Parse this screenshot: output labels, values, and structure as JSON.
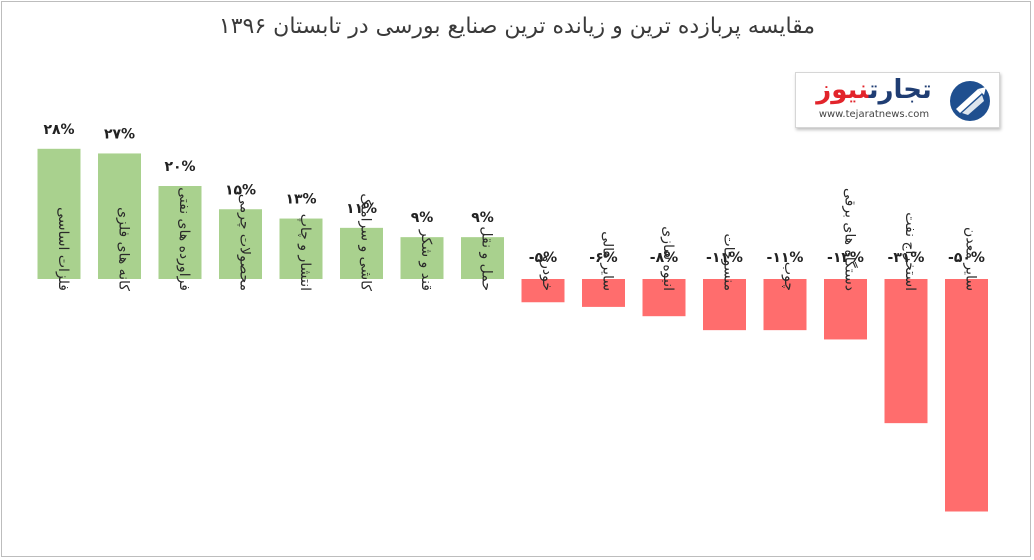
{
  "chart_data": {
    "type": "bar",
    "title": "مقایسه پربازده ترین و زیانده ترین صنایع بورسی در  تابستان ۱۳۹۶",
    "categories": [
      "فلزات اساسی",
      "کانه های فلزی",
      "فراورده های نفتی",
      "محصولات چرمی",
      "انتشار و چاپ",
      "کاشی و سرامیک",
      "قند و شکر",
      "حمل و نقل",
      "خودرو",
      "سایر مالی",
      "انبوه سازی",
      "منسوجات",
      "چوب",
      "دستگاه های برقی",
      "استخراج نفت",
      "سایر معدن"
    ],
    "values": [
      28,
      27,
      20,
      15,
      13,
      11,
      9,
      9,
      -5,
      -6,
      -8,
      -11,
      -11,
      -13,
      -31,
      -50
    ],
    "data_labels": [
      "۲۸%",
      "۲۷%",
      "۲۰%",
      "۱۵%",
      "۱۳%",
      "۱۱%",
      "۹%",
      "۹%",
      "-۵%",
      "-۶%",
      "-۸%",
      "-۱۱%",
      "-۱۱%",
      "-۱۳%",
      "-۳۱%",
      "-۵۰%"
    ],
    "colors": {
      "positive": "#a9d18e",
      "negative": "#ff6d6d"
    },
    "grid": false,
    "legend": "none"
  },
  "logo": {
    "text_red": "نیوز",
    "text_blue": "تجارت",
    "url": "www.tejaratnews.com"
  }
}
